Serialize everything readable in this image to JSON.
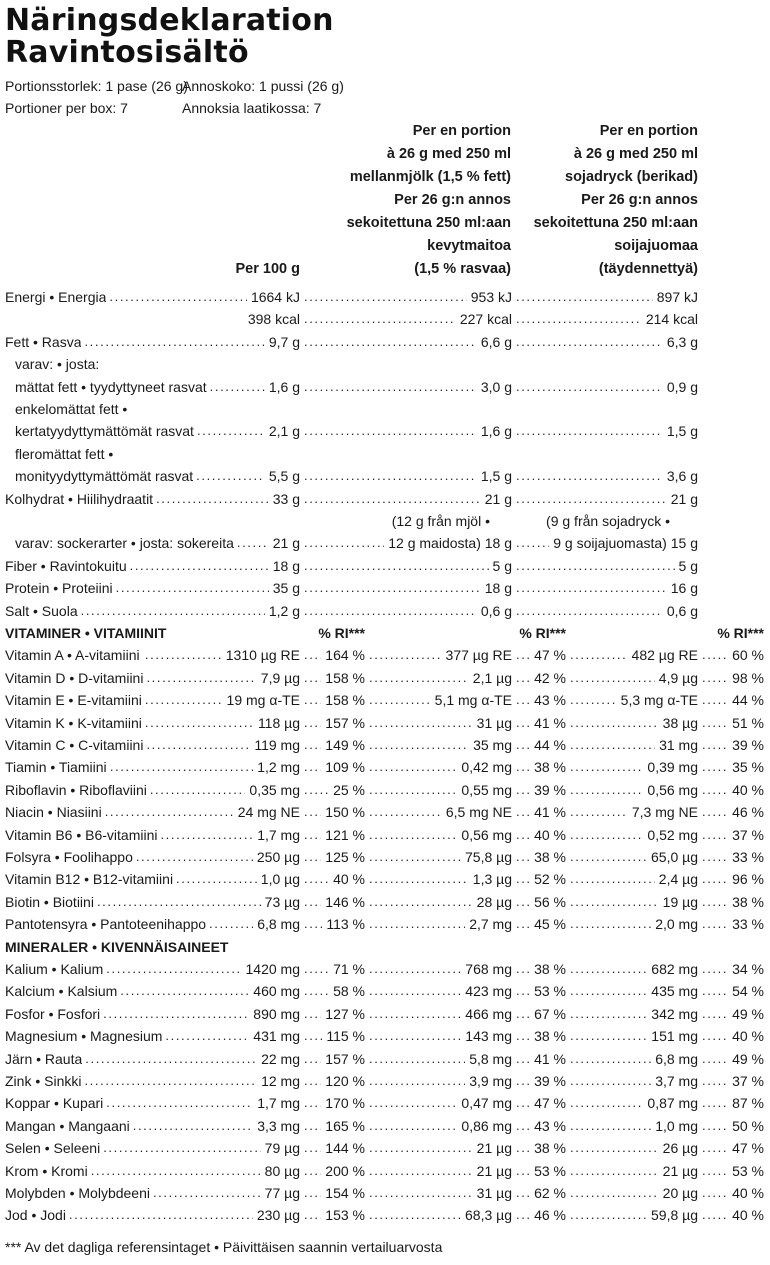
{
  "title_sv": "Näringsdeklaration",
  "title_fi": "Ravintosisältö",
  "serving": {
    "size_sv": "Portionsstorlek: 1 pase (26 g)",
    "size_fi": "Annoskoko: 1 pussi (26 g)",
    "per_box_sv": "Portioner per box: 7",
    "per_box_fi": "Annoksia laatikossa: 7"
  },
  "columns": {
    "per100": [
      "Per 100 g"
    ],
    "milk": [
      "Per en portion",
      "à 26 g med 250 ml",
      "mellanmjölk (1,5 % fett)",
      "Per 26 g:n annos",
      "sekoitettuna 250 ml:aan",
      "kevytmaitoa",
      "(1,5 % rasvaa)"
    ],
    "soy": [
      "Per en portion",
      "à 26 g med 250 ml",
      "sojadryck (berikad)",
      "Per 26 g:n annos",
      "sekoitettuna 250 ml:aan",
      "soijajuomaa",
      "(täydennettyä)"
    ]
  },
  "macros": [
    {
      "label": "Energi • Energia",
      "per100": "1664 kJ",
      "milk": "953 kJ",
      "soy": "897 kJ"
    },
    {
      "label": "",
      "per100": "398 kcal",
      "milk": "227 kcal",
      "soy": "214 kcal"
    },
    {
      "label": "Fett • Rasva",
      "per100": "9,7 g",
      "milk": "6,6 g",
      "soy": "6,3 g"
    },
    {
      "label": "varav: • josta:",
      "indent": true
    },
    {
      "label": "mättat fett • tyydyttyneet rasvat",
      "indent": true,
      "per100": "1,6 g",
      "milk": "3,0 g",
      "soy": "0,9 g"
    },
    {
      "label": "enkelomättat fett •",
      "indent": true
    },
    {
      "label": "kertatyydyttymättömät rasvat",
      "indent": true,
      "per100": "2,1 g",
      "milk": "1,6 g",
      "soy": "1,5 g"
    },
    {
      "label": "fleromättat fett •",
      "indent": true
    },
    {
      "label": "monityydyttymättömät rasvat",
      "indent": true,
      "per100": "5,5 g",
      "milk": "1,5 g",
      "soy": "3,6 g"
    },
    {
      "label": "Kolhydrat • Hiilihydraatit",
      "per100": "33 g",
      "milk": "21 g",
      "soy": "21 g"
    },
    {
      "label": "",
      "milk_note": "(12 g från mjöl •",
      "soy_note": "(9 g från sojadryck •"
    },
    {
      "label": "varav: sockerarter • josta: sokereita",
      "indent": true,
      "per100": "21 g",
      "milk": "12 g maidosta) 18 g",
      "soy": "9 g soijajuomasta) 15 g"
    },
    {
      "label": "Fiber • Ravintokuitu",
      "per100": "18 g",
      "milk": "5 g",
      "soy": "5 g"
    },
    {
      "label": "Protein • Proteiini",
      "per100": "35 g",
      "milk": "18 g",
      "soy": "16 g"
    },
    {
      "label": "Salt • Suola",
      "per100": "1,2 g",
      "milk": "0,6 g",
      "soy": "0,6 g"
    }
  ],
  "vitamins_heading": "VITAMINER • VITAMIINIT",
  "ri_label": "% RI***",
  "vitamins": [
    {
      "label": "Vitamin A • A-vitamiini",
      "per100": "1310 µg RE",
      "ri100": "164 %",
      "milk": "377 µg RE",
      "rimilk": "47 %",
      "soy": "482 µg RE",
      "risoy": "60 %"
    },
    {
      "label": "Vitamin D • D-vitamiini",
      "per100": "7,9 µg",
      "ri100": "158 %",
      "milk": "2,1 µg",
      "rimilk": "42 %",
      "soy": "4,9 µg",
      "risoy": "98 %"
    },
    {
      "label": "Vitamin E • E-vitamiini",
      "per100": "19 mg α-TE",
      "ri100": "158 %",
      "milk": "5,1 mg α-TE",
      "rimilk": "43 %",
      "soy": "5,3 mg α-TE",
      "risoy": "44 %"
    },
    {
      "label": "Vitamin K • K-vitamiini",
      "per100": "118 µg",
      "ri100": "157 %",
      "milk": "31 µg",
      "rimilk": "41 %",
      "soy": "38 µg",
      "risoy": "51 %"
    },
    {
      "label": "Vitamin C • C-vitamiini",
      "per100": "119 mg",
      "ri100": "149 %",
      "milk": "35 mg",
      "rimilk": "44 %",
      "soy": "31 mg",
      "risoy": "39 %"
    },
    {
      "label": "Tiamin • Tiamiini",
      "per100": "1,2 mg",
      "ri100": "109 %",
      "milk": "0,42 mg",
      "rimilk": "38 %",
      "soy": "0,39 mg",
      "risoy": "35 %"
    },
    {
      "label": "Riboflavin • Riboflaviini",
      "per100": "0,35 mg",
      "ri100": "25 %",
      "milk": "0,55 mg",
      "rimilk": "39 %",
      "soy": "0,56 mg",
      "risoy": "40 %"
    },
    {
      "label": "Niacin • Niasiini",
      "per100": "24 mg NE",
      "ri100": "150 %",
      "milk": "6,5 mg NE",
      "rimilk": "41 %",
      "soy": "7,3 mg NE",
      "risoy": "46 %"
    },
    {
      "label": "Vitamin B6 • B6-vitamiini",
      "per100": "1,7 mg",
      "ri100": "121 %",
      "milk": "0,56 mg",
      "rimilk": "40 %",
      "soy": "0,52 mg",
      "risoy": "37 %"
    },
    {
      "label": "Folsyra • Foolihappo",
      "per100": "250 µg",
      "ri100": "125 %",
      "milk": "75,8 µg",
      "rimilk": "38 %",
      "soy": "65,0 µg",
      "risoy": "33 %"
    },
    {
      "label": "Vitamin B12 • B12-vitamiini",
      "per100": "1,0 µg",
      "ri100": "40 %",
      "milk": "1,3 µg",
      "rimilk": "52 %",
      "soy": "2,4 µg",
      "risoy": "96 %"
    },
    {
      "label": "Biotin • Biotiini",
      "per100": "73 µg",
      "ri100": "146 %",
      "milk": "28 µg",
      "rimilk": "56 %",
      "soy": "19 µg",
      "risoy": "38 %"
    },
    {
      "label": "Pantotensyra • Pantoteenihappo",
      "per100": "6,8 mg",
      "ri100": "113 %",
      "milk": "2,7 mg",
      "rimilk": "45 %",
      "soy": "2,0 mg",
      "risoy": "33 %"
    }
  ],
  "minerals_heading": "MINERALER • KIVENNÄISAINEET",
  "minerals": [
    {
      "label": "Kalium • Kalium",
      "per100": "1420 mg",
      "ri100": "71 %",
      "milk": "768 mg",
      "rimilk": "38 %",
      "soy": "682 mg",
      "risoy": "34 %"
    },
    {
      "label": "Kalcium • Kalsium",
      "per100": "460 mg",
      "ri100": "58 %",
      "milk": "423 mg",
      "rimilk": "53 %",
      "soy": "435 mg",
      "risoy": "54 %"
    },
    {
      "label": "Fosfor • Fosfori",
      "per100": "890 mg",
      "ri100": "127 %",
      "milk": "466 mg",
      "rimilk": "67 %",
      "soy": "342 mg",
      "risoy": "49 %"
    },
    {
      "label": "Magnesium • Magnesium",
      "per100": "431 mg",
      "ri100": "115 %",
      "milk": "143 mg",
      "rimilk": "38 %",
      "soy": "151 mg",
      "risoy": "40 %"
    },
    {
      "label": "Järn • Rauta",
      "per100": "22 mg",
      "ri100": "157 %",
      "milk": "5,8 mg",
      "rimilk": "41 %",
      "soy": "6,8 mg",
      "risoy": "49 %"
    },
    {
      "label": "Zink • Sinkki",
      "per100": "12 mg",
      "ri100": "120 %",
      "milk": "3,9 mg",
      "rimilk": "39 %",
      "soy": "3,7 mg",
      "risoy": "37 %"
    },
    {
      "label": "Koppar • Kupari",
      "per100": "1,7 mg",
      "ri100": "170 %",
      "milk": "0,47 mg",
      "rimilk": "47 %",
      "soy": "0,87 mg",
      "risoy": "87 %"
    },
    {
      "label": "Mangan • Mangaani",
      "per100": "3,3 mg",
      "ri100": "165 %",
      "milk": "0,86 mg",
      "rimilk": "43 %",
      "soy": "1,0 mg",
      "risoy": "50 %"
    },
    {
      "label": "Selen • Seleeni",
      "per100": "79 µg",
      "ri100": "144 %",
      "milk": "21 µg",
      "rimilk": "38 %",
      "soy": "26 µg",
      "risoy": "47 %"
    },
    {
      "label": "Krom • Kromi",
      "per100": "80 µg",
      "ri100": "200 %",
      "milk": "21 µg",
      "rimilk": "53 %",
      "soy": "21 µg",
      "risoy": "53 %"
    },
    {
      "label": "Molybden • Molybdeeni",
      "per100": "77 µg",
      "ri100": "154 %",
      "milk": "31 µg",
      "rimilk": "62 %",
      "soy": "20 µg",
      "risoy": "40 %"
    },
    {
      "label": "Jod • Jodi",
      "per100": "230 µg",
      "ri100": "153 %",
      "milk": "68,3 µg",
      "rimilk": "46 %",
      "soy": "59,8 µg",
      "risoy": "40 %"
    }
  ],
  "footnote": "*** Av det dagliga referensintaget • Päivittäisen saannin vertailuarvosta"
}
